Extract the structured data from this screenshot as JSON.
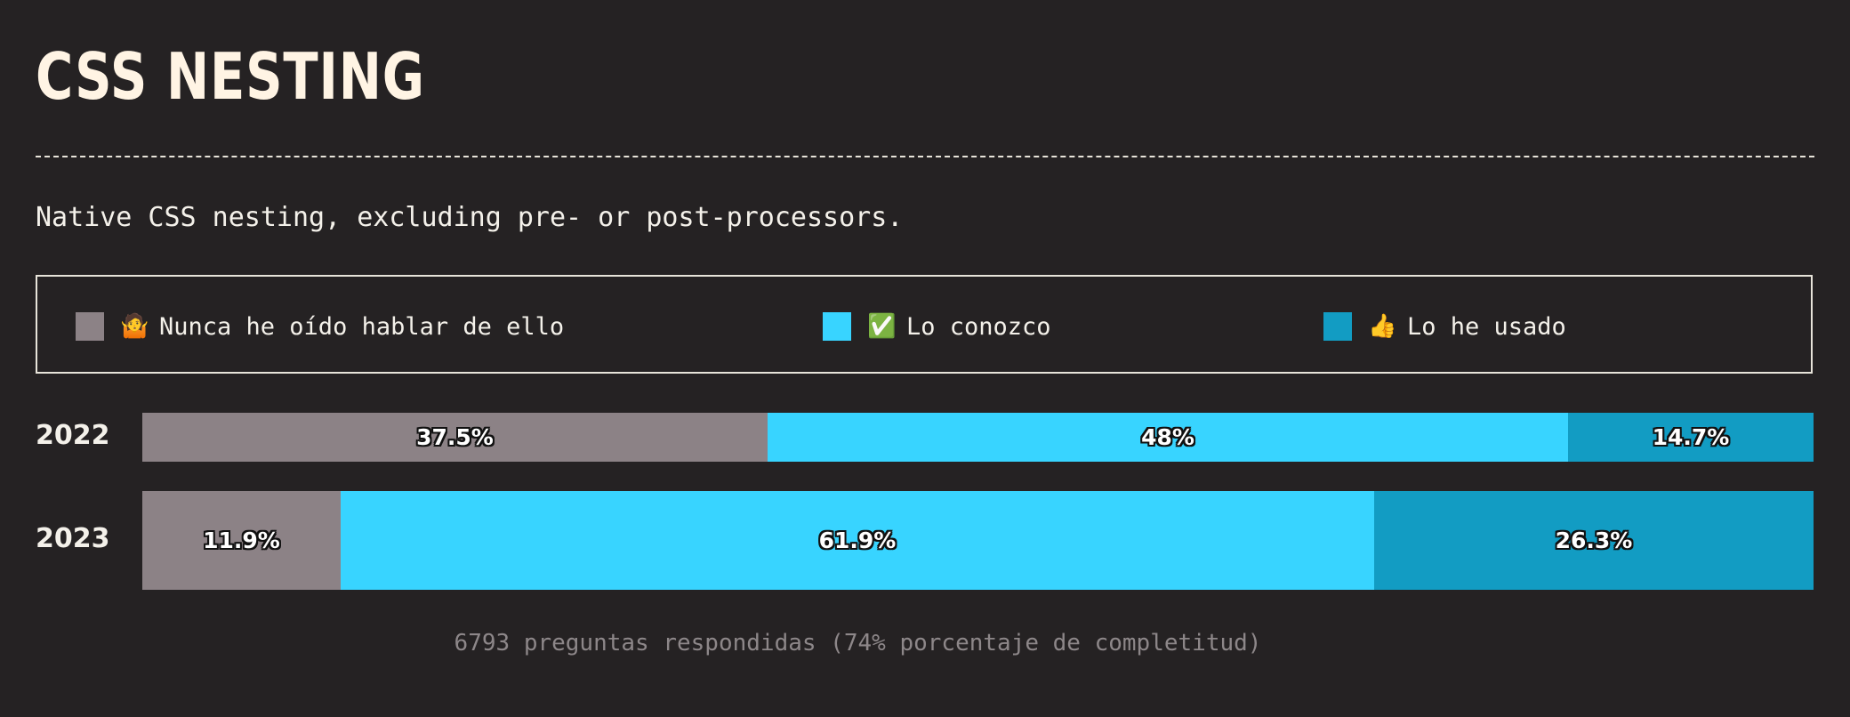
{
  "header": {
    "title": "CSS NESTING"
  },
  "description": "Native CSS nesting, excluding pre- or post-processors.",
  "legend": {
    "items": [
      {
        "icon": "shrug-emoji-icon",
        "emoji": "🤷",
        "label": "Nunca he oído hablar de ello",
        "color": "#8c8286"
      },
      {
        "icon": "check-mark-emoji-icon",
        "emoji": "✅",
        "label": "Lo conozco",
        "color": "#38d4ff"
      },
      {
        "icon": "thumbs-up-emoji-icon",
        "emoji": "👍",
        "label": "Lo he usado",
        "color": "#129cc3"
      }
    ]
  },
  "chart_data": {
    "type": "bar",
    "orientation": "horizontal",
    "stacked": true,
    "categories": [
      "2022",
      "2023"
    ],
    "series": [
      {
        "name": "Nunca he oído hablar de ello",
        "values": [
          37.5,
          11.9
        ],
        "labels": [
          "37.5%",
          "11.9%"
        ],
        "color": "#8c8286"
      },
      {
        "name": "Lo conozco",
        "values": [
          48,
          61.9
        ],
        "labels": [
          "48%",
          "61.9%"
        ],
        "color": "#38d4ff"
      },
      {
        "name": "Lo he usado",
        "values": [
          14.7,
          26.3
        ],
        "labels": [
          "14.7%",
          "26.3%"
        ],
        "color": "#129cc3"
      }
    ],
    "xlim": [
      0,
      100
    ],
    "unit": "%",
    "grid": false,
    "legend_position": "top"
  },
  "footer": {
    "text": "6793 preguntas respondidas (74% porcentaje de completitud)"
  }
}
